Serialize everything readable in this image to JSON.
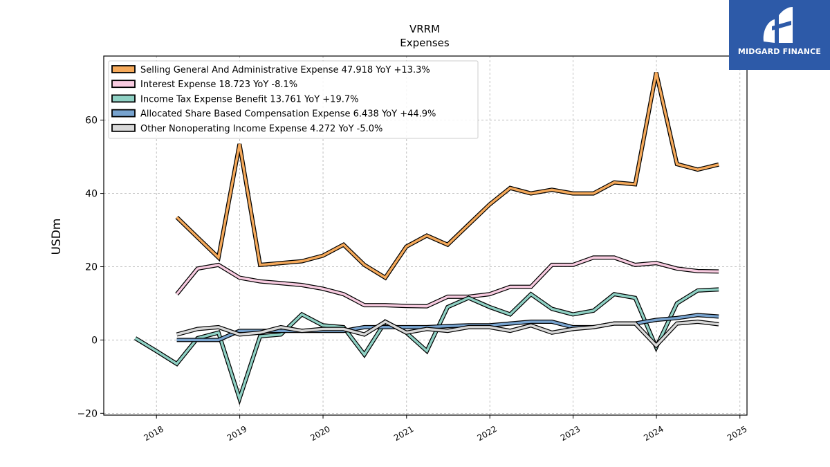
{
  "brand": {
    "name": "MIDGARD FINANCE",
    "colors": {
      "background": "#2d5aa8",
      "text": "#ffffff"
    }
  },
  "chart_data": {
    "type": "line",
    "title": "VRRM",
    "subtitle": "Expenses",
    "xlabel": "",
    "ylabel": "USDm",
    "xlim": [
      "2017-05-15",
      "2025-02-01"
    ],
    "ylim": [
      -20.5,
      77.5
    ],
    "yticks": [
      -20,
      0,
      20,
      40,
      60
    ],
    "xticks": [
      {
        "date": "2018-01-01",
        "label": "2018"
      },
      {
        "date": "2019-01-01",
        "label": "2019"
      },
      {
        "date": "2020-01-01",
        "label": "2020"
      },
      {
        "date": "2021-01-01",
        "label": "2021"
      },
      {
        "date": "2022-01-01",
        "label": "2022"
      },
      {
        "date": "2023-01-01",
        "label": "2023"
      },
      {
        "date": "2024-01-01",
        "label": "2024"
      },
      {
        "date": "2025-01-01",
        "label": "2025"
      }
    ],
    "grid": true,
    "legend_position": "top-left",
    "series": [
      {
        "name": "Selling General And Administrative Expense",
        "legend": "Selling General And Administrative Expense  47.918 YoY +13.3%",
        "color": "#f5a95a",
        "points": [
          [
            "2018-03-31",
            33.5
          ],
          [
            "2018-06-30",
            28.0
          ],
          [
            "2018-09-30",
            22.5
          ],
          [
            "2018-12-31",
            53.5
          ],
          [
            "2019-03-31",
            20.5
          ],
          [
            "2019-06-30",
            21.0
          ],
          [
            "2019-09-30",
            21.5
          ],
          [
            "2019-12-31",
            23.0
          ],
          [
            "2020-03-31",
            26.0
          ],
          [
            "2020-06-30",
            20.5
          ],
          [
            "2020-09-30",
            17.0
          ],
          [
            "2020-12-31",
            25.5
          ],
          [
            "2021-03-31",
            28.5
          ],
          [
            "2021-06-30",
            26.0
          ],
          [
            "2021-09-30",
            31.5
          ],
          [
            "2021-12-31",
            37.0
          ],
          [
            "2022-03-31",
            41.5
          ],
          [
            "2022-06-30",
            40.0
          ],
          [
            "2022-09-30",
            41.0
          ],
          [
            "2022-12-31",
            40.0
          ],
          [
            "2023-03-31",
            40.0
          ],
          [
            "2023-06-30",
            43.0
          ],
          [
            "2023-09-30",
            42.5
          ],
          [
            "2023-12-31",
            73.0
          ],
          [
            "2024-03-31",
            48.0
          ],
          [
            "2024-06-30",
            46.5
          ],
          [
            "2024-09-30",
            47.9
          ]
        ]
      },
      {
        "name": "Interest Expense",
        "legend": "Interest Expense  18.723 YoY -8.1%",
        "color": "#f8cbe0",
        "points": [
          [
            "2018-03-31",
            12.5
          ],
          [
            "2018-06-30",
            19.5
          ],
          [
            "2018-09-30",
            20.5
          ],
          [
            "2018-12-31",
            17.0
          ],
          [
            "2019-03-31",
            16.0
          ],
          [
            "2019-06-30",
            15.5
          ],
          [
            "2019-09-30",
            15.0
          ],
          [
            "2019-12-31",
            14.0
          ],
          [
            "2020-03-31",
            12.5
          ],
          [
            "2020-06-30",
            9.5
          ],
          [
            "2020-09-30",
            9.5
          ],
          [
            "2020-12-31",
            9.3
          ],
          [
            "2021-03-31",
            9.2
          ],
          [
            "2021-06-30",
            11.8
          ],
          [
            "2021-09-30",
            11.8
          ],
          [
            "2021-12-31",
            12.5
          ],
          [
            "2022-03-31",
            14.5
          ],
          [
            "2022-06-30",
            14.5
          ],
          [
            "2022-09-30",
            20.5
          ],
          [
            "2022-12-31",
            20.5
          ],
          [
            "2023-03-31",
            22.5
          ],
          [
            "2023-06-30",
            22.5
          ],
          [
            "2023-09-30",
            20.5
          ],
          [
            "2023-12-31",
            21.0
          ],
          [
            "2024-03-31",
            19.5
          ],
          [
            "2024-06-30",
            18.8
          ],
          [
            "2024-09-30",
            18.7
          ]
        ]
      },
      {
        "name": "Income Tax Expense Benefit",
        "legend": "Income Tax Expense Benefit  13.761 YoY +19.7%",
        "color": "#8fd1c4",
        "points": [
          [
            "2017-09-30",
            0.5
          ],
          [
            "2017-12-31",
            -3.0
          ],
          [
            "2018-03-31",
            -6.5
          ],
          [
            "2018-06-30",
            0.5
          ],
          [
            "2018-09-30",
            2.0
          ],
          [
            "2018-12-31",
            -16.0
          ],
          [
            "2019-03-31",
            1.0
          ],
          [
            "2019-06-30",
            1.5
          ],
          [
            "2019-09-30",
            7.0
          ],
          [
            "2019-12-31",
            4.0
          ],
          [
            "2020-03-31",
            3.5
          ],
          [
            "2020-06-30",
            -4.0
          ],
          [
            "2020-09-30",
            5.0
          ],
          [
            "2020-12-31",
            2.0
          ],
          [
            "2021-03-31",
            -3.0
          ],
          [
            "2021-06-30",
            9.0
          ],
          [
            "2021-09-30",
            11.5
          ],
          [
            "2021-12-31",
            9.0
          ],
          [
            "2022-03-31",
            7.0
          ],
          [
            "2022-06-30",
            12.5
          ],
          [
            "2022-09-30",
            8.5
          ],
          [
            "2022-12-31",
            7.0
          ],
          [
            "2023-03-31",
            8.0
          ],
          [
            "2023-06-30",
            12.5
          ],
          [
            "2023-09-30",
            11.5
          ],
          [
            "2023-12-31",
            -2.0
          ],
          [
            "2024-03-31",
            10.0
          ],
          [
            "2024-06-30",
            13.5
          ],
          [
            "2024-09-30",
            13.8
          ]
        ]
      },
      {
        "name": "Allocated Share Based Compensation Expense",
        "legend": "Allocated Share Based Compensation Expense  6.438 YoY +44.9%",
        "color": "#77a3cf",
        "points": [
          [
            "2018-03-31",
            0.0
          ],
          [
            "2018-06-30",
            0.0
          ],
          [
            "2018-09-30",
            0.0
          ],
          [
            "2018-12-31",
            2.5
          ],
          [
            "2019-03-31",
            2.5
          ],
          [
            "2019-06-30",
            2.5
          ],
          [
            "2019-09-30",
            2.5
          ],
          [
            "2019-12-31",
            2.5
          ],
          [
            "2020-03-31",
            2.5
          ],
          [
            "2020-06-30",
            3.5
          ],
          [
            "2020-09-30",
            3.5
          ],
          [
            "2020-12-31",
            3.5
          ],
          [
            "2021-03-31",
            3.5
          ],
          [
            "2021-06-30",
            3.8
          ],
          [
            "2021-09-30",
            4.0
          ],
          [
            "2021-12-31",
            4.0
          ],
          [
            "2022-03-31",
            4.5
          ],
          [
            "2022-06-30",
            5.0
          ],
          [
            "2022-09-30",
            5.0
          ],
          [
            "2022-12-31",
            3.5
          ],
          [
            "2023-03-31",
            3.5
          ],
          [
            "2023-06-30",
            4.5
          ],
          [
            "2023-09-30",
            4.5
          ],
          [
            "2023-12-31",
            5.5
          ],
          [
            "2024-03-31",
            6.0
          ],
          [
            "2024-06-30",
            6.8
          ],
          [
            "2024-09-30",
            6.4
          ]
        ]
      },
      {
        "name": "Other Nonoperating Income Expense",
        "legend": "Other Nonoperating Income Expense  4.272 YoY -5.0%",
        "color": "#d9d9d9",
        "points": [
          [
            "2018-03-31",
            1.5
          ],
          [
            "2018-06-30",
            3.0
          ],
          [
            "2018-09-30",
            3.5
          ],
          [
            "2018-12-31",
            1.5
          ],
          [
            "2019-03-31",
            2.0
          ],
          [
            "2019-06-30",
            3.5
          ],
          [
            "2019-09-30",
            2.5
          ],
          [
            "2019-12-31",
            3.0
          ],
          [
            "2020-03-31",
            3.0
          ],
          [
            "2020-06-30",
            1.5
          ],
          [
            "2020-09-30",
            5.0
          ],
          [
            "2020-12-31",
            2.0
          ],
          [
            "2021-03-31",
            3.0
          ],
          [
            "2021-06-30",
            2.5
          ],
          [
            "2021-09-30",
            3.5
          ],
          [
            "2021-12-31",
            3.5
          ],
          [
            "2022-03-31",
            2.5
          ],
          [
            "2022-06-30",
            4.0
          ],
          [
            "2022-09-30",
            2.0
          ],
          [
            "2022-12-31",
            3.0
          ],
          [
            "2023-03-31",
            3.5
          ],
          [
            "2023-06-30",
            4.5
          ],
          [
            "2023-09-30",
            4.5
          ],
          [
            "2023-12-31",
            -1.5
          ],
          [
            "2024-03-31",
            4.5
          ],
          [
            "2024-06-30",
            5.0
          ],
          [
            "2024-09-30",
            4.3
          ]
        ]
      }
    ]
  }
}
